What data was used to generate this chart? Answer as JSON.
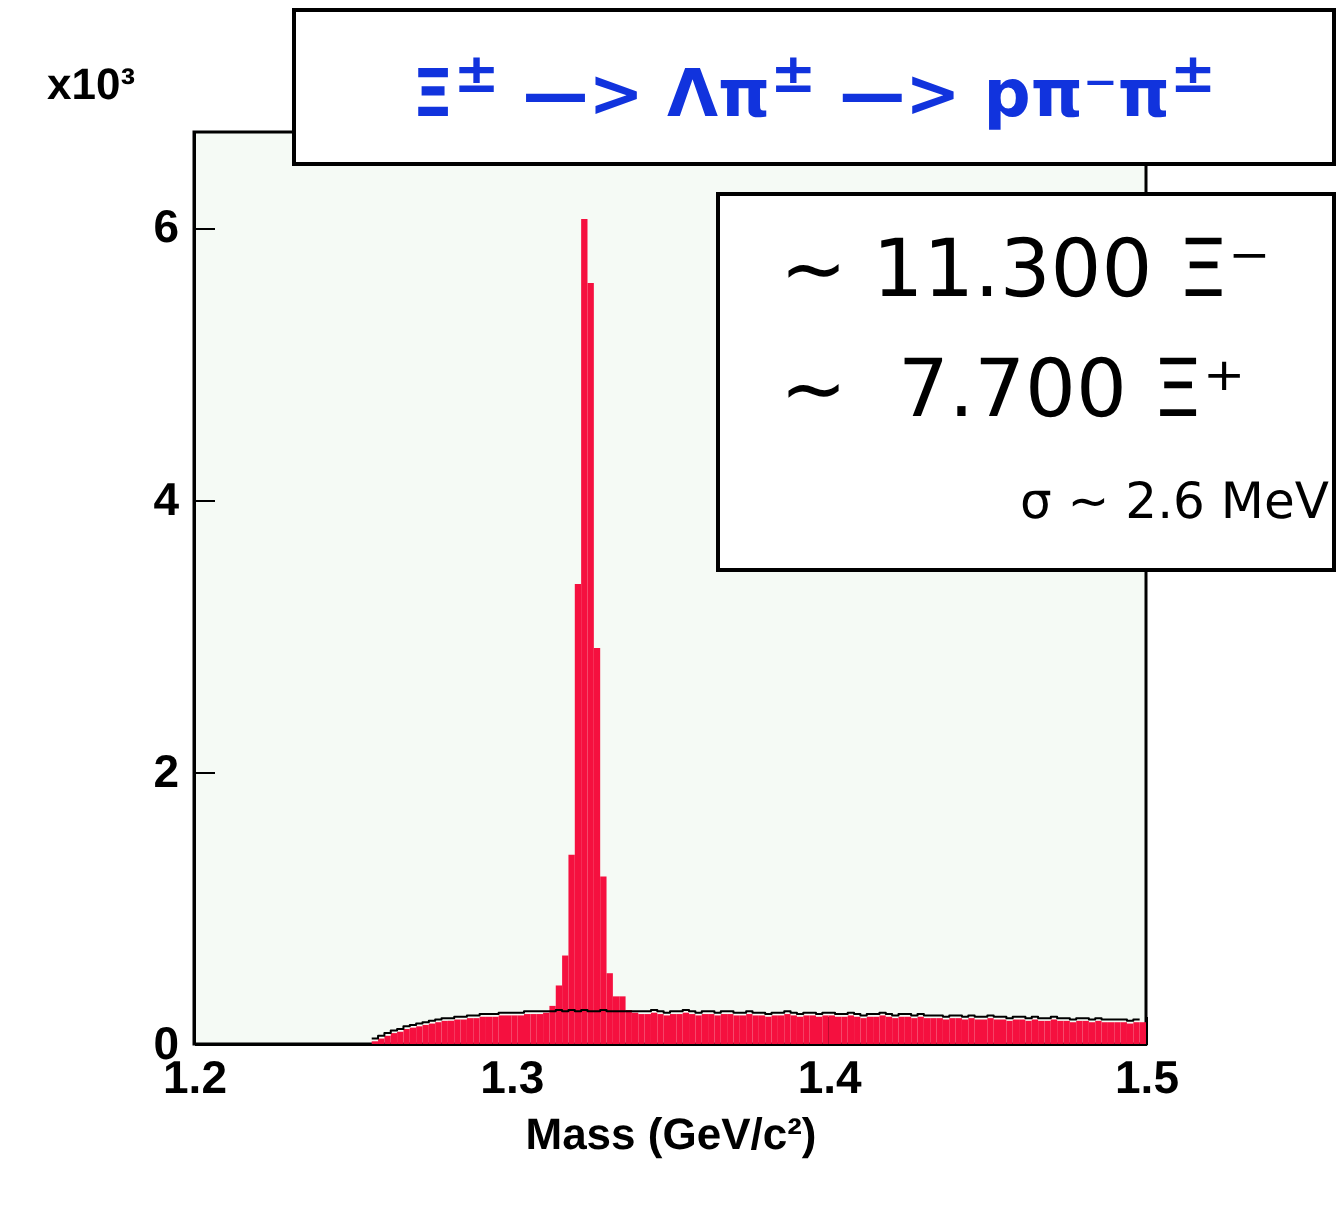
{
  "chart_data": {
    "type": "histogram",
    "title": "Ξ$^{±}$ —> Λπ$^{±}$ —> pπ⁻π$^{±}$",
    "xlabel": "Mass (GeV/c²)",
    "ylabel": "x10³",
    "annotations": [
      "~ 11.300 Ξ⁻",
      "~  7.700 Ξ⁺",
      "σ ~ 2.6 MeV"
    ],
    "xlim": [
      1.2,
      1.5
    ],
    "xticks": [
      1.2,
      1.3,
      1.4,
      1.5
    ],
    "ylim": [
      0,
      6.7
    ],
    "yticks": [
      0,
      2,
      4,
      6
    ],
    "grid": false,
    "bins": [
      1.256,
      1.258,
      1.26,
      1.262,
      1.264,
      1.266,
      1.268,
      1.27,
      1.272,
      1.274,
      1.276,
      1.278,
      1.28,
      1.282,
      1.284,
      1.286,
      1.288,
      1.29,
      1.292,
      1.294,
      1.296,
      1.298,
      1.3,
      1.302,
      1.304,
      1.306,
      1.308,
      1.31,
      1.312,
      1.314,
      1.316,
      1.318,
      1.32,
      1.322,
      1.324,
      1.326,
      1.328,
      1.33,
      1.332,
      1.334,
      1.336,
      1.338,
      1.34,
      1.342,
      1.344,
      1.346,
      1.348,
      1.35,
      1.352,
      1.354,
      1.356,
      1.358,
      1.36,
      1.362,
      1.364,
      1.366,
      1.368,
      1.37,
      1.372,
      1.374,
      1.376,
      1.378,
      1.38,
      1.382,
      1.384,
      1.386,
      1.388,
      1.39,
      1.392,
      1.394,
      1.396,
      1.398,
      1.4,
      1.402,
      1.404,
      1.406,
      1.408,
      1.41,
      1.412,
      1.414,
      1.416,
      1.418,
      1.42,
      1.422,
      1.424,
      1.426,
      1.428,
      1.43,
      1.432,
      1.434,
      1.436,
      1.438,
      1.44,
      1.442,
      1.444,
      1.446,
      1.448,
      1.45,
      1.452,
      1.454,
      1.456,
      1.458,
      1.46,
      1.462,
      1.464,
      1.466,
      1.468,
      1.47,
      1.472,
      1.474,
      1.476,
      1.478,
      1.48,
      1.482,
      1.484,
      1.486,
      1.488,
      1.49,
      1.492,
      1.494,
      1.496,
      1.498,
      1.5
    ],
    "series": [
      {
        "type": "histogram",
        "color": "#f5103f",
        "values": [
          0.02,
          0.04,
          0.06,
          0.08,
          0.09,
          0.11,
          0.12,
          0.13,
          0.14,
          0.15,
          0.16,
          0.17,
          0.17,
          0.18,
          0.18,
          0.19,
          0.19,
          0.2,
          0.2,
          0.2,
          0.21,
          0.21,
          0.21,
          0.21,
          0.22,
          0.22,
          0.22,
          0.23,
          0.28,
          0.43,
          0.65,
          1.39,
          3.38,
          6.06,
          5.59,
          2.91,
          1.23,
          0.52,
          0.35,
          0.35,
          0.25,
          0.23,
          0.22,
          0.22,
          0.23,
          0.22,
          0.21,
          0.22,
          0.22,
          0.23,
          0.22,
          0.21,
          0.22,
          0.22,
          0.21,
          0.22,
          0.22,
          0.21,
          0.21,
          0.22,
          0.21,
          0.21,
          0.2,
          0.21,
          0.21,
          0.22,
          0.21,
          0.2,
          0.21,
          0.21,
          0.2,
          0.21,
          0.21,
          0.2,
          0.2,
          0.21,
          0.2,
          0.19,
          0.2,
          0.2,
          0.21,
          0.2,
          0.19,
          0.2,
          0.2,
          0.19,
          0.2,
          0.19,
          0.19,
          0.19,
          0.18,
          0.19,
          0.19,
          0.18,
          0.19,
          0.18,
          0.18,
          0.19,
          0.18,
          0.18,
          0.17,
          0.18,
          0.18,
          0.17,
          0.18,
          0.17,
          0.17,
          0.18,
          0.17,
          0.17,
          0.16,
          0.17,
          0.17,
          0.16,
          0.17,
          0.16,
          0.16,
          0.16,
          0.16,
          0.15,
          0.16,
          0.16
        ]
      },
      {
        "type": "step",
        "color": "#000000",
        "x": [
          1.256,
          1.258,
          1.26,
          1.262,
          1.264,
          1.266,
          1.268,
          1.27,
          1.272,
          1.274,
          1.276,
          1.278,
          1.28,
          1.282,
          1.284,
          1.286,
          1.288,
          1.29,
          1.292,
          1.294,
          1.296,
          1.298,
          1.3,
          1.302,
          1.304,
          1.306,
          1.308,
          1.31,
          1.312,
          1.314,
          1.316,
          1.318,
          1.32,
          1.322,
          1.324,
          1.326,
          1.328,
          1.33,
          1.332,
          1.334,
          1.336,
          1.338,
          1.34,
          1.342,
          1.344,
          1.346,
          1.348,
          1.35,
          1.352,
          1.354,
          1.356,
          1.358,
          1.36,
          1.362,
          1.364,
          1.366,
          1.368,
          1.37,
          1.372,
          1.374,
          1.376,
          1.378,
          1.38,
          1.382,
          1.384,
          1.386,
          1.388,
          1.39,
          1.392,
          1.394,
          1.396,
          1.398,
          1.4,
          1.402,
          1.404,
          1.406,
          1.408,
          1.41,
          1.412,
          1.414,
          1.416,
          1.418,
          1.42,
          1.422,
          1.424,
          1.426,
          1.428,
          1.43,
          1.432,
          1.434,
          1.436,
          1.438,
          1.44,
          1.442,
          1.444,
          1.446,
          1.448,
          1.45,
          1.452,
          1.454,
          1.456,
          1.458,
          1.46,
          1.462,
          1.464,
          1.466,
          1.468,
          1.47,
          1.472,
          1.474,
          1.476,
          1.478,
          1.48,
          1.482,
          1.484,
          1.486,
          1.488,
          1.49,
          1.492,
          1.494,
          1.496,
          1.498
        ],
        "values": [
          0.04,
          0.06,
          0.08,
          0.1,
          0.11,
          0.13,
          0.14,
          0.15,
          0.16,
          0.17,
          0.18,
          0.19,
          0.19,
          0.2,
          0.2,
          0.21,
          0.21,
          0.22,
          0.22,
          0.22,
          0.23,
          0.23,
          0.23,
          0.23,
          0.24,
          0.24,
          0.24,
          0.24,
          0.24,
          0.25,
          0.24,
          0.25,
          0.24,
          0.25,
          0.24,
          0.24,
          0.25,
          0.24,
          0.24,
          0.24,
          0.24,
          0.24,
          0.24,
          0.24,
          0.25,
          0.24,
          0.23,
          0.24,
          0.24,
          0.25,
          0.24,
          0.23,
          0.24,
          0.24,
          0.23,
          0.24,
          0.24,
          0.23,
          0.23,
          0.24,
          0.23,
          0.23,
          0.22,
          0.23,
          0.23,
          0.24,
          0.23,
          0.22,
          0.23,
          0.23,
          0.22,
          0.23,
          0.23,
          0.22,
          0.22,
          0.23,
          0.22,
          0.21,
          0.22,
          0.22,
          0.23,
          0.22,
          0.21,
          0.22,
          0.22,
          0.21,
          0.22,
          0.21,
          0.21,
          0.21,
          0.2,
          0.21,
          0.21,
          0.2,
          0.21,
          0.2,
          0.2,
          0.21,
          0.2,
          0.2,
          0.19,
          0.2,
          0.2,
          0.19,
          0.2,
          0.19,
          0.19,
          0.2,
          0.19,
          0.19,
          0.18,
          0.19,
          0.19,
          0.18,
          0.19,
          0.18,
          0.18,
          0.18,
          0.18,
          0.17,
          0.18,
          0.18
        ]
      }
    ]
  }
}
